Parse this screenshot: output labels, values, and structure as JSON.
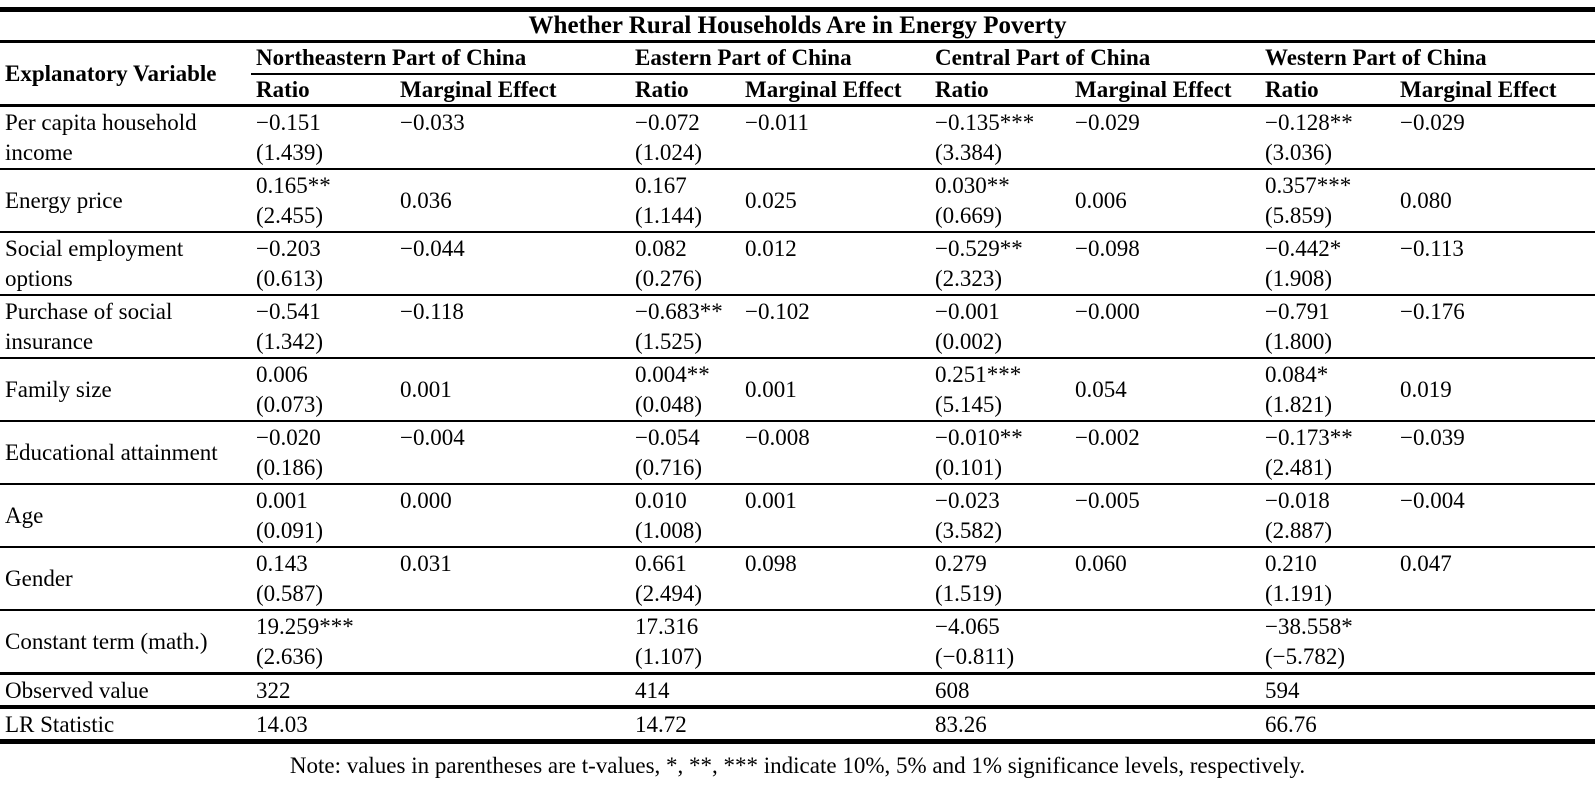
{
  "table": {
    "title": "Whether Rural Households Are in Energy Poverty",
    "explanatory_variable_header": "Explanatory Variable",
    "groups": [
      {
        "name": "Northeastern Part of China",
        "ratio_header": "Ratio",
        "marginal_effect_header": "Marginal Effect"
      },
      {
        "name": "Eastern Part of China",
        "ratio_header": "Ratio",
        "marginal_effect_header": "Marginal Effect"
      },
      {
        "name": "Central Part of China",
        "ratio_header": "Ratio",
        "marginal_effect_header": "Marginal Effect"
      },
      {
        "name": "Western Part of China",
        "ratio_header": "Ratio",
        "marginal_effect_header": "Marginal Effect"
      }
    ],
    "rows": [
      {
        "label_lines": [
          "Per capita household",
          "income"
        ],
        "label_valign": "top",
        "cells": [
          {
            "ratio": "−0.151",
            "t": "(1.439)",
            "me": "−0.033",
            "me_valign": "top"
          },
          {
            "ratio": "−0.072",
            "t": "(1.024)",
            "me": "−0.011",
            "me_valign": "top"
          },
          {
            "ratio": "−0.135***",
            "t": "(3.384)",
            "me": "−0.029",
            "me_valign": "top"
          },
          {
            "ratio": "−0.128**",
            "t": "(3.036)",
            "me": "−0.029",
            "me_valign": "top"
          }
        ]
      },
      {
        "label_lines": [
          "Energy price"
        ],
        "label_valign": "middle",
        "cells": [
          {
            "ratio": "0.165**",
            "t": "(2.455)",
            "me": "0.036",
            "me_valign": "middle"
          },
          {
            "ratio": "0.167",
            "t": "(1.144)",
            "me": "0.025",
            "me_valign": "middle"
          },
          {
            "ratio": "0.030**",
            "t": "(0.669)",
            "me": "0.006",
            "me_valign": "middle"
          },
          {
            "ratio": "0.357***",
            "t": "(5.859)",
            "me": "0.080",
            "me_valign": "middle"
          }
        ]
      },
      {
        "label_lines": [
          "Social employment",
          "options"
        ],
        "label_valign": "top",
        "cells": [
          {
            "ratio": "−0.203",
            "t": "(0.613)",
            "me": "−0.044",
            "me_valign": "top"
          },
          {
            "ratio": "0.082",
            "t": "(0.276)",
            "me": "0.012",
            "me_valign": "top"
          },
          {
            "ratio": "−0.529**",
            "t": "(2.323)",
            "me": "−0.098",
            "me_valign": "top"
          },
          {
            "ratio": "−0.442*",
            "t": "(1.908)",
            "me": "−0.113",
            "me_valign": "top"
          }
        ]
      },
      {
        "label_lines": [
          "Purchase of social",
          "insurance"
        ],
        "label_valign": "top",
        "cells": [
          {
            "ratio": "−0.541",
            "t": "(1.342)",
            "me": "−0.118",
            "me_valign": "top"
          },
          {
            "ratio": "−0.683**",
            "t": "(1.525)",
            "me": "−0.102",
            "me_valign": "top"
          },
          {
            "ratio": "−0.001",
            "t": "(0.002)",
            "me": "−0.000",
            "me_valign": "top"
          },
          {
            "ratio": "−0.791",
            "t": "(1.800)",
            "me": "−0.176",
            "me_valign": "top"
          }
        ]
      },
      {
        "label_lines": [
          "Family size"
        ],
        "label_valign": "middle",
        "cells": [
          {
            "ratio": "0.006",
            "t": "(0.073)",
            "me": "0.001",
            "me_valign": "middle"
          },
          {
            "ratio": "0.004**",
            "t": "(0.048)",
            "me": "0.001",
            "me_valign": "middle"
          },
          {
            "ratio": "0.251***",
            "t": "(5.145)",
            "me": "0.054",
            "me_valign": "middle"
          },
          {
            "ratio": "0.084*",
            "t": "(1.821)",
            "me": "0.019",
            "me_valign": "middle"
          }
        ]
      },
      {
        "label_lines": [
          "Educational attainment"
        ],
        "label_valign": "middle",
        "cells": [
          {
            "ratio": "−0.020",
            "t": "(0.186)",
            "me": "−0.004",
            "me_valign": "top"
          },
          {
            "ratio": "−0.054",
            "t": "(0.716)",
            "me": "−0.008",
            "me_valign": "top"
          },
          {
            "ratio": "−0.010**",
            "t": "(0.101)",
            "me": "−0.002",
            "me_valign": "top"
          },
          {
            "ratio": "−0.173**",
            "t": "(2.481)",
            "me": "−0.039",
            "me_valign": "top"
          }
        ]
      },
      {
        "label_lines": [
          "Age"
        ],
        "label_valign": "middle",
        "cells": [
          {
            "ratio": "0.001",
            "t": "(0.091)",
            "me": "0.000",
            "me_valign": "top"
          },
          {
            "ratio": "0.010",
            "t": "(1.008)",
            "me": "0.001",
            "me_valign": "top"
          },
          {
            "ratio": "−0.023",
            "t": "(3.582)",
            "me": "−0.005",
            "me_valign": "top"
          },
          {
            "ratio": "−0.018",
            "t": "(2.887)",
            "me": "−0.004",
            "me_valign": "top"
          }
        ]
      },
      {
        "label_lines": [
          "Gender"
        ],
        "label_valign": "middle",
        "cells": [
          {
            "ratio": "0.143",
            "t": "(0.587)",
            "me": "0.031",
            "me_valign": "top"
          },
          {
            "ratio": "0.661",
            "t": "(2.494)",
            "me": "0.098",
            "me_valign": "top"
          },
          {
            "ratio": "0.279",
            "t": "(1.519)",
            "me": "0.060",
            "me_valign": "top"
          },
          {
            "ratio": "0.210",
            "t": "(1.191)",
            "me": "0.047",
            "me_valign": "top"
          }
        ]
      },
      {
        "label_lines": [
          "Constant term (math.)"
        ],
        "label_valign": "middle",
        "cells": [
          {
            "ratio": "19.259***",
            "t": "(2.636)",
            "me": "",
            "me_valign": "top"
          },
          {
            "ratio": "17.316",
            "t": "(1.107)",
            "me": "",
            "me_valign": "top"
          },
          {
            "ratio": "−4.065",
            "t": "(−0.811)",
            "me": "",
            "me_valign": "top"
          },
          {
            "ratio": "−38.558*",
            "t": "(−5.782)",
            "me": "",
            "me_valign": "top"
          }
        ]
      }
    ],
    "summary_rows": [
      {
        "label": "Observed value",
        "values": [
          "322",
          "414",
          "608",
          "594"
        ]
      },
      {
        "label": "LR Statistic",
        "values": [
          "14.03",
          "14.72",
          "83.26",
          "66.76"
        ]
      }
    ],
    "note": "Note: values in parentheses are t-values, *, **, *** indicate 10%, 5% and 1% significance levels, respectively."
  }
}
